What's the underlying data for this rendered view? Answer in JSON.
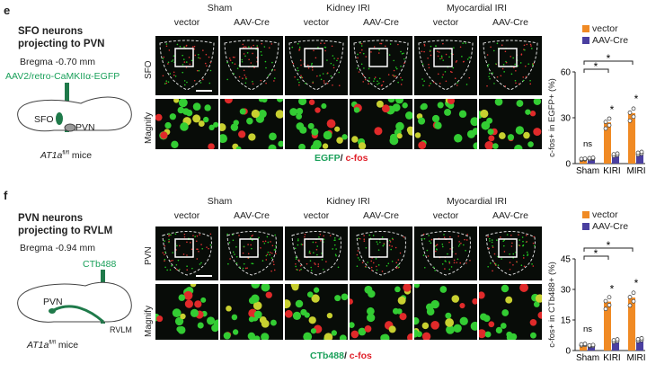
{
  "panel_e": {
    "letter": "e",
    "title": "SFO neurons projecting to PVN",
    "bregma": "Bregma -0.70 mm",
    "virus": "AAV2/retro-CaMKIIα-EGFP",
    "region1": "SFO",
    "region2": "PVN",
    "mice": "AT1a",
    "mice_sup": "fl/fl",
    "mice_suffix": " mice",
    "groups": [
      "Sham",
      "Kidney IRI",
      "Myocardial IRI"
    ],
    "columns": [
      "vector",
      "AAV-Cre",
      "vector",
      "AAV-Cre",
      "vector",
      "AAV-Cre"
    ],
    "row_labels": [
      "SFO",
      "Magnify"
    ],
    "stain_green": "EGFP",
    "stain_sep": "/ ",
    "stain_red": "c-fos"
  },
  "panel_f": {
    "letter": "f",
    "title": "PVN neurons projecting to RVLM",
    "bregma": "Bregma -0.94 mm",
    "tracer": "CTb488",
    "region1": "PVN",
    "region2": "RVLM",
    "mice": "AT1a",
    "mice_sup": "fl/fl",
    "mice_suffix": " mice",
    "groups": [
      "Sham",
      "Kidney IRI",
      "Myocardial IRI"
    ],
    "columns": [
      "vector",
      "AAV-Cre",
      "vector",
      "AAV-Cre",
      "vector",
      "AAV-Cre"
    ],
    "row_labels": [
      "PVN",
      "Magnify"
    ],
    "stain_green": "CTb488",
    "stain_sep": "/ ",
    "stain_red": "c-fos"
  },
  "colors": {
    "vector": "#f08a24",
    "aav_cre": "#4a3fa0",
    "egfp": "#1aa05a",
    "cfos": "#e0202a"
  },
  "chart_data": [
    {
      "type": "bar",
      "ylabel": "c-fos+ in EGFP+ (%)",
      "categories": [
        "Sham",
        "KIRI",
        "MIRI"
      ],
      "ylim": [
        0,
        60
      ],
      "yticks": [
        0,
        30,
        60
      ],
      "legend": "top-right",
      "series": [
        {
          "name": "vector",
          "values": [
            3,
            27,
            33
          ]
        },
        {
          "name": "AAV-Cre",
          "values": [
            3.5,
            6,
            7
          ]
        }
      ],
      "annotations": [
        "ns",
        "*",
        "*",
        "*",
        "*"
      ]
    },
    {
      "type": "bar",
      "ylabel": "c-fos+ in CTb488+ (%)",
      "categories": [
        "Sham",
        "KIRI",
        "MIRI"
      ],
      "ylim": [
        0,
        45
      ],
      "yticks": [
        0,
        15,
        30,
        45
      ],
      "legend": "top-right",
      "series": [
        {
          "name": "vector",
          "values": [
            3,
            24,
            26
          ]
        },
        {
          "name": "AAV-Cre",
          "values": [
            2.5,
            5,
            5.5
          ]
        }
      ],
      "annotations": [
        "ns",
        "*",
        "*",
        "*",
        "*"
      ]
    }
  ]
}
